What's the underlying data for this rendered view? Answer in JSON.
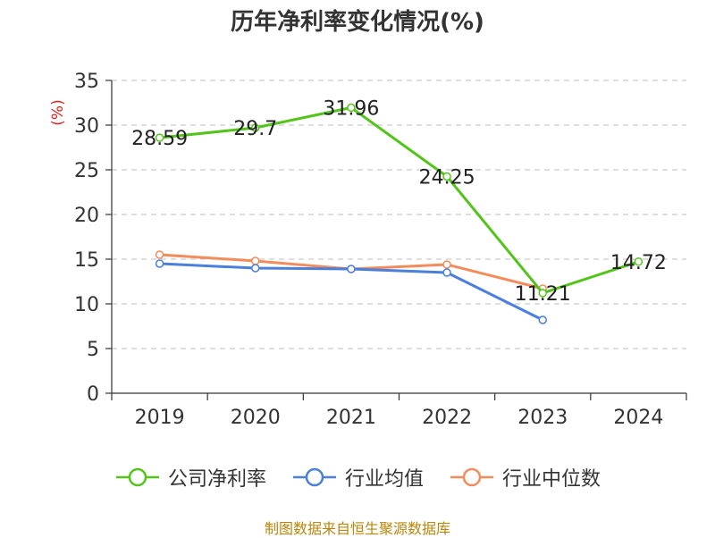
{
  "chart_data": {
    "type": "line",
    "title": "历年净利率变化情况(%)",
    "ylabel": "(%)",
    "xlabel": "",
    "categories": [
      "2019",
      "2020",
      "2021",
      "2022",
      "2023",
      "2024"
    ],
    "ylim": [
      0,
      35
    ],
    "yticks": [
      0,
      5,
      10,
      15,
      20,
      25,
      30,
      35
    ],
    "grid": true,
    "legend_position": "bottom",
    "series": [
      {
        "name": "公司净利率",
        "color": "#52c41a",
        "values": [
          28.59,
          29.7,
          31.96,
          24.25,
          11.21,
          14.72
        ],
        "labels": [
          "28.59",
          "29.7",
          "31.96",
          "24.25",
          "11.21",
          "14.72"
        ]
      },
      {
        "name": "行业均值",
        "color": "#4a7fdb",
        "values": [
          14.5,
          14.0,
          13.9,
          13.5,
          8.2,
          null
        ]
      },
      {
        "name": "行业中位数",
        "color": "#f28c5c",
        "values": [
          15.5,
          14.8,
          13.9,
          14.4,
          11.7,
          null
        ]
      }
    ]
  },
  "source_note": "制图数据来自恒生聚源数据库"
}
